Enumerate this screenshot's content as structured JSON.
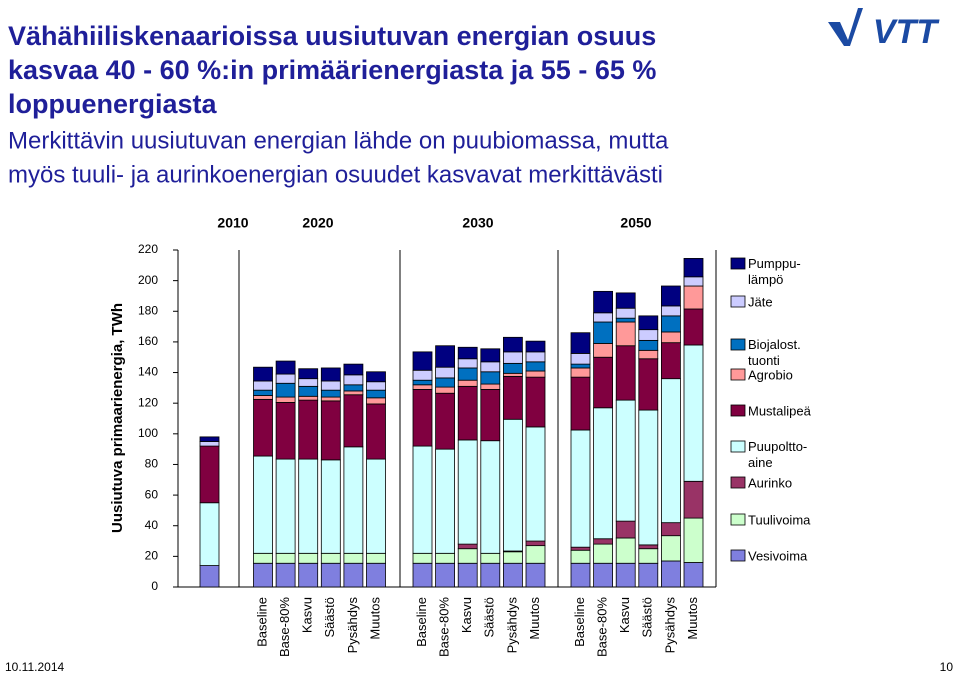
{
  "chart_data": {
    "type": "stacked-bar",
    "title": [
      "Vähähiiliskenaarioissa uusiutuvan energian osuus",
      "kasvaa 40 - 60 %:in primäärienergiasta ja 55 - 65 %",
      "loppuenergiasta"
    ],
    "subtitle": [
      "Merkittävin uusiutuvan energian lähde on puubiomassa, mutta",
      "myös tuuli- ja aurinkoenergian osuudet kasvavat merkittävästi"
    ],
    "y_label": "Uusiutuva primaarienergia, TWh",
    "groups": [
      {
        "label": "2010",
        "categories": [
          null
        ]
      },
      {
        "label": "2020",
        "categories": [
          "Baseline",
          "Base-80%",
          "Kasvu",
          "Säästö",
          "Pysähdys",
          "Muutos"
        ]
      },
      {
        "label": "2030",
        "categories": [
          "Baseline",
          "Base-80%",
          "Kasvu",
          "Säästö",
          "Pysähdys",
          "Muutos"
        ]
      },
      {
        "label": "2050",
        "categories": [
          "Baseline",
          "Base-80%",
          "Kasvu",
          "Säästö",
          "Pysähdys",
          "Muutos"
        ]
      }
    ],
    "ylim": [
      0,
      220
    ],
    "yticks": [
      0,
      20,
      40,
      60,
      80,
      100,
      120,
      140,
      160,
      180,
      200,
      220
    ],
    "series": [
      {
        "name": "Vesivoima",
        "color": "#7f7fdf",
        "values": [
          14,
          15.5,
          15.5,
          15.5,
          15.5,
          15.5,
          15.5,
          15.5,
          15.5,
          15.5,
          15.5,
          15.5,
          15.5,
          15.5,
          15.5,
          15.5,
          15.5,
          17,
          16
        ]
      },
      {
        "name": "Tuulivoima",
        "color": "#ccffcc",
        "values": [
          0,
          6.5,
          6.5,
          6.5,
          6.5,
          6.5,
          6.5,
          6.5,
          6.5,
          9.5,
          6.5,
          7.5,
          11.5,
          8.5,
          12.5,
          16.5,
          9.5,
          16.5,
          29
        ]
      },
      {
        "name": "Aurinko",
        "color": "#993366",
        "values": [
          0,
          0,
          0,
          0,
          0,
          0,
          0,
          0,
          0,
          3,
          0,
          0.5,
          3,
          2,
          3.5,
          11,
          2.5,
          8.5,
          24
        ]
      },
      {
        "name": "Puupoltto-\naine",
        "color": "#ccffff",
        "values": [
          41,
          63.5,
          61.5,
          61.5,
          61,
          69.5,
          61.5,
          70,
          68,
          68,
          73.5,
          86,
          74.5,
          76.5,
          85.5,
          79,
          88,
          94,
          89
        ]
      },
      {
        "name": "Mustalipeä",
        "color": "#800040",
        "values": [
          37,
          37,
          37,
          38.5,
          38.5,
          34,
          36,
          37,
          36.5,
          35,
          33.5,
          28,
          32.5,
          34.5,
          33,
          35.5,
          33.5,
          23.5,
          23.5
        ]
      },
      {
        "name": "Agrobio",
        "color": "#ff9999",
        "values": [
          0,
          2.5,
          3.5,
          2.5,
          2.5,
          2.5,
          4,
          3,
          4,
          4,
          3.5,
          2,
          4,
          6,
          9,
          15.5,
          5.5,
          7,
          15
        ]
      },
      {
        "name": "Biojalost.\ntuonti",
        "color": "#0070c0",
        "values": [
          0,
          3.5,
          9,
          6.5,
          4.5,
          4,
          5,
          3,
          6,
          8,
          8,
          6.5,
          6,
          2.5,
          14,
          2.5,
          6.5,
          10.5,
          0
        ]
      },
      {
        "name": "Jäte",
        "color": "#ccccff",
        "values": [
          3,
          6,
          6,
          5,
          6,
          6.5,
          5.5,
          6.5,
          7,
          6,
          6.5,
          7.5,
          6.5,
          7,
          6,
          6.5,
          7,
          6.5,
          6
        ]
      },
      {
        "name": "Pumppu-\nlämpö",
        "color": "#000080",
        "values": [
          3,
          9,
          8.5,
          6.5,
          8.5,
          7,
          6.5,
          12,
          14,
          7.5,
          8.5,
          9.5,
          7,
          13.5,
          14,
          10,
          9,
          13,
          12
        ]
      }
    ],
    "date": "10.11.2014",
    "page": "10",
    "logo": "VTT"
  }
}
